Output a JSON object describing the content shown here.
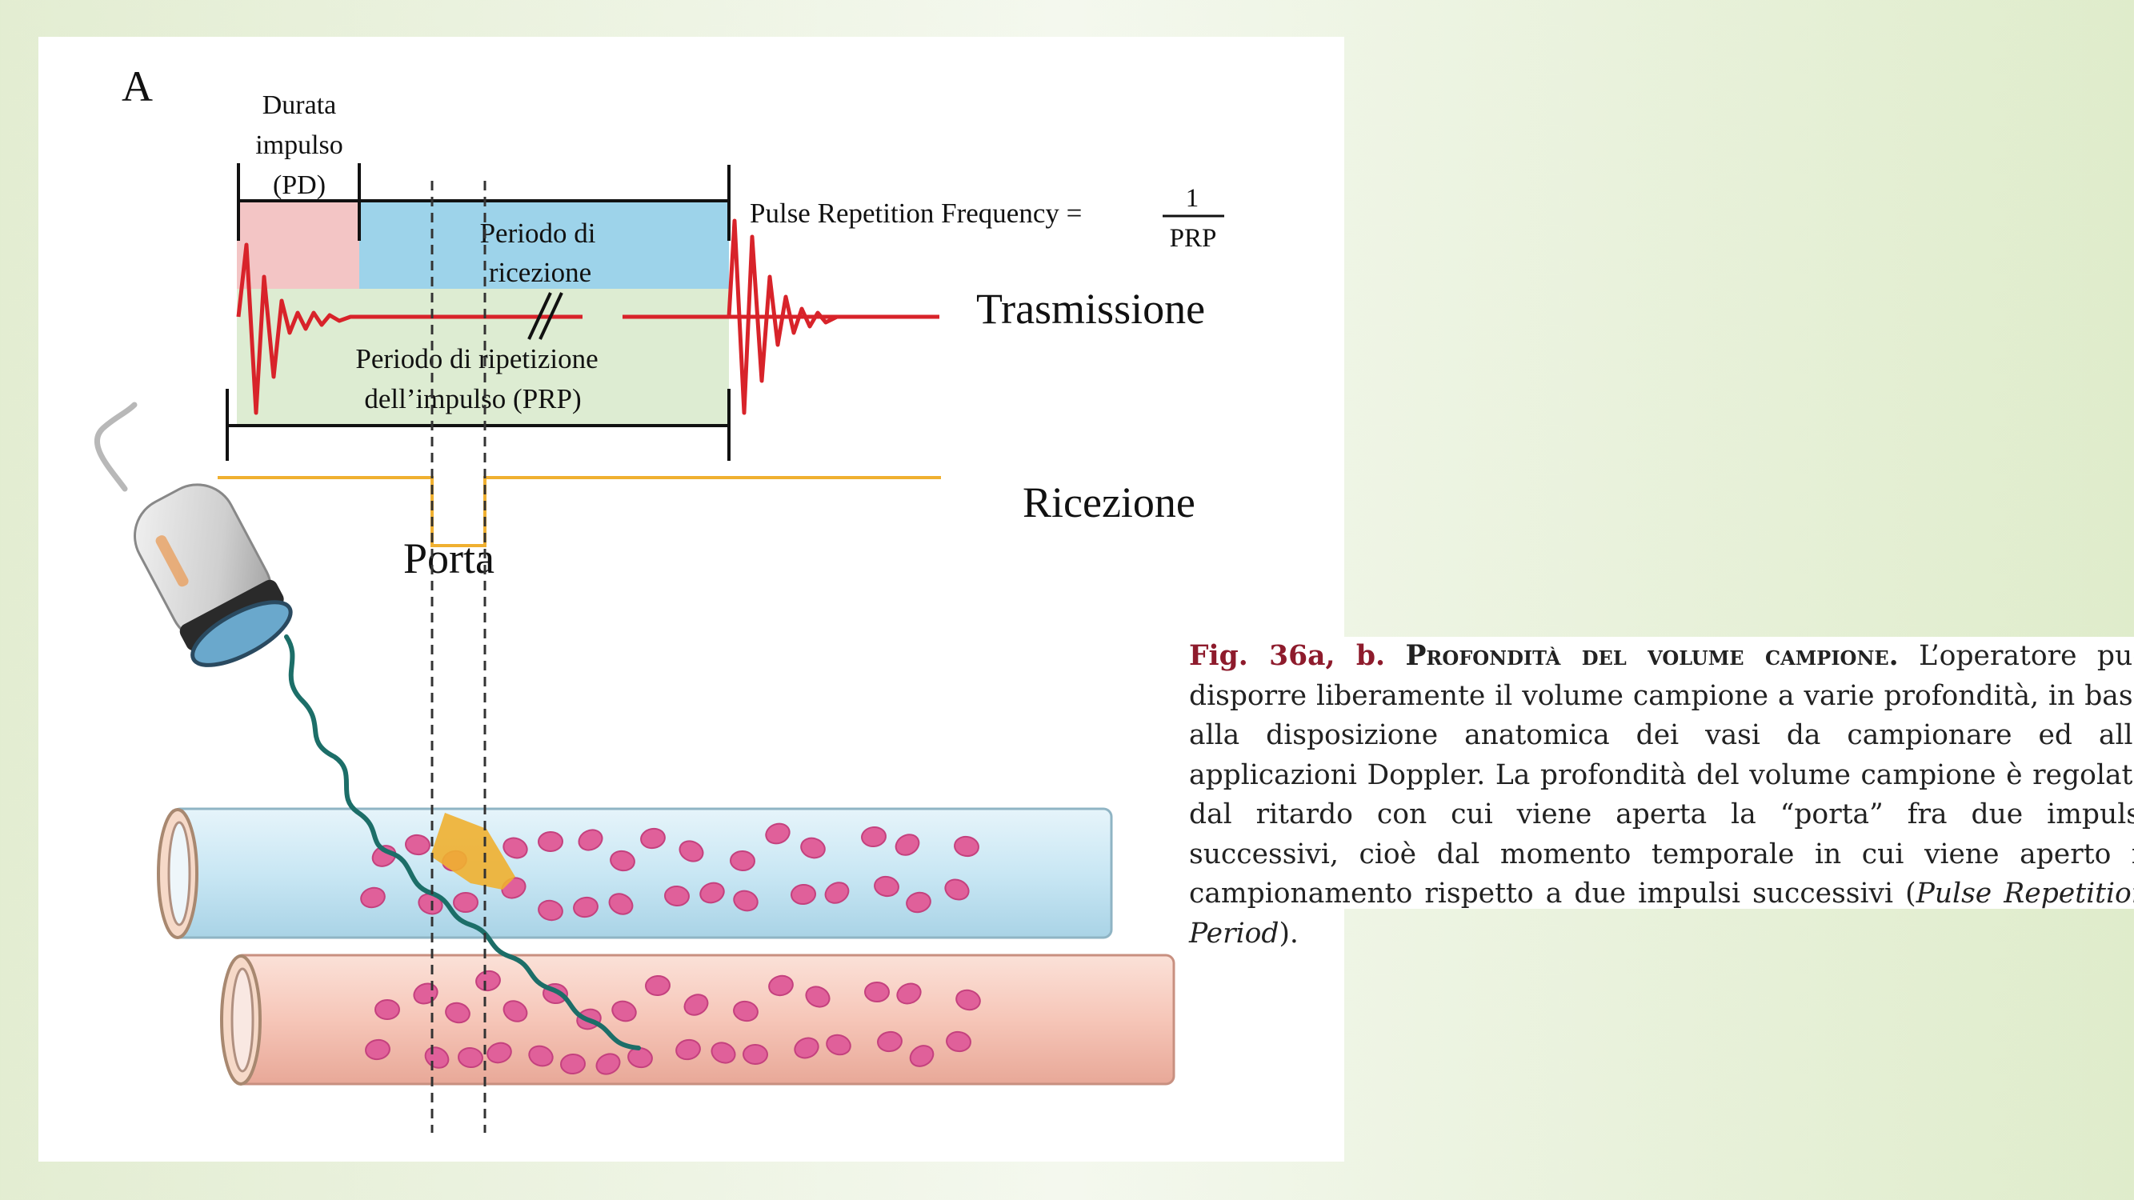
{
  "panel_label": "A",
  "pd": {
    "line1": "Durata",
    "line2": "impulso",
    "line3": "(PD)"
  },
  "reception_period": {
    "line1": "Periodo di",
    "line2": "ricezione"
  },
  "prp": {
    "line1": "Periodo di ripetizione",
    "line2": "dell’impulso (PRP)"
  },
  "formula": {
    "label": "Pulse Repetition Frequency =",
    "numerator": "1",
    "denominator": "PRP"
  },
  "trasmissione_label": "Trasmissione",
  "ricezione_label": "Ricezione",
  "porta_label": "Porta",
  "icons": [
    "ultrasound-probe-icon",
    "vessel-vein",
    "vessel-artery",
    "red-blood-cell"
  ],
  "colors": {
    "pulse_wave": "#d8232a",
    "pd_fill": "#f3c5c5",
    "reception_fill": "#9dd3ea",
    "prp_fill": "#ddecd2",
    "gate_line": "#f0b030",
    "beam": "#1c6e68",
    "vein": "#cfe9f5",
    "artery": "#f6c6b8",
    "blood_cell": "#e0609a"
  },
  "caption": {
    "figref": "Fig. 36a, b.",
    "heading": "Profondità del volume campione.",
    "body": "L’operatore può disporre liberamente il volume campione a varie profondità, in base alla disposizione anatomica dei vasi da campionare ed alle applicazioni Doppler. La profondità del volume campione è regolata dal ritardo con cui viene aperta la “porta” fra due impulsi successivi, cioè dal momento temporale in cui viene aperto il campionamento rispetto a due impulsi successivi (",
    "emphasis": "Pulse Repetition Period",
    "tail": ")."
  }
}
